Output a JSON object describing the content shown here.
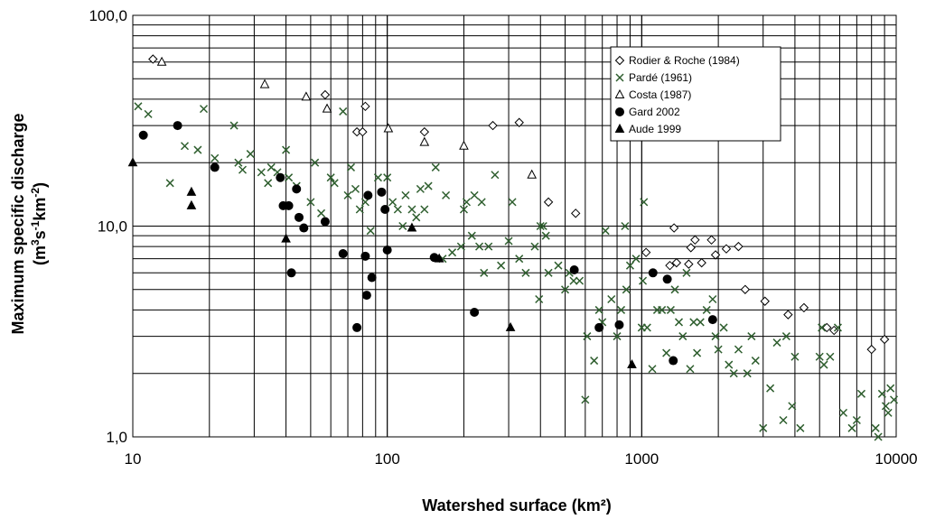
{
  "chart_data": {
    "type": "scatter",
    "xlabel": "Watershed surface (km²)",
    "ylabel_line1": "Maximum specific discharge",
    "ylabel_line2": {
      "pre": "(m",
      "sup1": "3",
      "mid1": "s",
      "sup2": "-1",
      "mid2": "km",
      "sup3": "-2",
      "post": ")"
    },
    "x_scale": "log",
    "y_scale": "log",
    "xlim": [
      10,
      10000
    ],
    "ylim": [
      1,
      100
    ],
    "x_ticks": [
      {
        "value": 10,
        "label": "10"
      },
      {
        "value": 100,
        "label": "100"
      },
      {
        "value": 1000,
        "label": "1000"
      },
      {
        "value": 10000,
        "label": "10000"
      }
    ],
    "y_ticks": [
      {
        "value": 1,
        "label": "1,0"
      },
      {
        "value": 10,
        "label": "10,0"
      },
      {
        "value": 100,
        "label": "100,0"
      }
    ],
    "grid": "major and minor",
    "legend_position": "top-right",
    "series": [
      {
        "name": "Rodier & Roche (1984)",
        "marker": "diamond-open",
        "color": "#000000",
        "points": [
          [
            12,
            62
          ],
          [
            57,
            42
          ],
          [
            76,
            28
          ],
          [
            80,
            28
          ],
          [
            82,
            37
          ],
          [
            140,
            28
          ],
          [
            260,
            30
          ],
          [
            330,
            31
          ],
          [
            430,
            13
          ],
          [
            550,
            11.5
          ],
          [
            1040,
            7.5
          ],
          [
            1290,
            6.5
          ],
          [
            1340,
            9.8
          ],
          [
            1370,
            6.7
          ],
          [
            1530,
            6.6
          ],
          [
            1560,
            7.9
          ],
          [
            1620,
            8.6
          ],
          [
            1720,
            6.7
          ],
          [
            1880,
            8.6
          ],
          [
            1950,
            7.3
          ],
          [
            2150,
            7.8
          ],
          [
            2400,
            8.0
          ],
          [
            2550,
            5.0
          ],
          [
            3050,
            4.4
          ],
          [
            3760,
            3.8
          ],
          [
            4340,
            4.1
          ],
          [
            5340,
            3.3
          ],
          [
            5700,
            3.2
          ],
          [
            8000,
            2.6
          ],
          [
            9000,
            2.9
          ]
        ]
      },
      {
        "name": "Pardé (1961)",
        "marker": "x",
        "color": "#2e5e2e",
        "points": [
          [
            10.5,
            37
          ],
          [
            11.5,
            34
          ],
          [
            14,
            16
          ],
          [
            16,
            24
          ],
          [
            18,
            23
          ],
          [
            19,
            36
          ],
          [
            21,
            21
          ],
          [
            25,
            30
          ],
          [
            26,
            20
          ],
          [
            27,
            18.5
          ],
          [
            29,
            22
          ],
          [
            32,
            18
          ],
          [
            34,
            16
          ],
          [
            35,
            19
          ],
          [
            37,
            18
          ],
          [
            40,
            23
          ],
          [
            41,
            17
          ],
          [
            44,
            15.5
          ],
          [
            50,
            13
          ],
          [
            52,
            20
          ],
          [
            55,
            11.5
          ],
          [
            60,
            17
          ],
          [
            62,
            16
          ],
          [
            67,
            35
          ],
          [
            70,
            14
          ],
          [
            72,
            19
          ],
          [
            75,
            15
          ],
          [
            78,
            12
          ],
          [
            82,
            13
          ],
          [
            86,
            9.5
          ],
          [
            92,
            17
          ],
          [
            100,
            17
          ],
          [
            105,
            13
          ],
          [
            110,
            12
          ],
          [
            115,
            10
          ],
          [
            118,
            14
          ],
          [
            125,
            12
          ],
          [
            130,
            11
          ],
          [
            135,
            15
          ],
          [
            140,
            12
          ],
          [
            145,
            15.5
          ],
          [
            155,
            19
          ],
          [
            165,
            7
          ],
          [
            170,
            14
          ],
          [
            180,
            7.5
          ],
          [
            195,
            8
          ],
          [
            200,
            12
          ],
          [
            205,
            13
          ],
          [
            215,
            9
          ],
          [
            220,
            14
          ],
          [
            230,
            8
          ],
          [
            235,
            13
          ],
          [
            240,
            6
          ],
          [
            250,
            8
          ],
          [
            265,
            17.5
          ],
          [
            280,
            6.5
          ],
          [
            300,
            8.5
          ],
          [
            310,
            13
          ],
          [
            330,
            7
          ],
          [
            350,
            6
          ],
          [
            380,
            8
          ],
          [
            395,
            4.5
          ],
          [
            400,
            10
          ],
          [
            410,
            10
          ],
          [
            420,
            9
          ],
          [
            430,
            6
          ],
          [
            470,
            6.5
          ],
          [
            500,
            5
          ],
          [
            520,
            6
          ],
          [
            540,
            5.5
          ],
          [
            570,
            5.5
          ],
          [
            600,
            1.5
          ],
          [
            610,
            3
          ],
          [
            650,
            2.3
          ],
          [
            680,
            4
          ],
          [
            700,
            3.5
          ],
          [
            720,
            9.5
          ],
          [
            760,
            4.5
          ],
          [
            800,
            3
          ],
          [
            830,
            4
          ],
          [
            860,
            10
          ],
          [
            870,
            5
          ],
          [
            900,
            6.5
          ],
          [
            950,
            7
          ],
          [
            1000,
            3.3
          ],
          [
            1010,
            5.5
          ],
          [
            1020,
            13
          ],
          [
            1050,
            3.3
          ],
          [
            1100,
            2.1
          ],
          [
            1150,
            4
          ],
          [
            1200,
            4
          ],
          [
            1250,
            2.5
          ],
          [
            1300,
            4
          ],
          [
            1350,
            5
          ],
          [
            1400,
            3.5
          ],
          [
            1450,
            3
          ],
          [
            1500,
            6
          ],
          [
            1550,
            2.1
          ],
          [
            1600,
            3.5
          ],
          [
            1650,
            2.5
          ],
          [
            1700,
            3.5
          ],
          [
            1800,
            4
          ],
          [
            1900,
            4.5
          ],
          [
            1950,
            3
          ],
          [
            2000,
            2.6
          ],
          [
            2100,
            3.3
          ],
          [
            2200,
            2.2
          ],
          [
            2300,
            2
          ],
          [
            2400,
            2.6
          ],
          [
            2600,
            2
          ],
          [
            2700,
            3
          ],
          [
            2800,
            2.3
          ],
          [
            3000,
            1.1
          ],
          [
            3200,
            1.7
          ],
          [
            3400,
            2.8
          ],
          [
            3600,
            1.2
          ],
          [
            3700,
            3
          ],
          [
            3900,
            1.4
          ],
          [
            4000,
            2.4
          ],
          [
            4200,
            1.1
          ],
          [
            5000,
            2.4
          ],
          [
            5100,
            3.3
          ],
          [
            5200,
            2.2
          ],
          [
            5500,
            2.4
          ],
          [
            5900,
            3.3
          ],
          [
            6200,
            1.3
          ],
          [
            6700,
            1.1
          ],
          [
            7000,
            1.2
          ],
          [
            7300,
            1.6
          ],
          [
            8300,
            1.1
          ],
          [
            8500,
            1.0
          ],
          [
            8800,
            1.6
          ],
          [
            9100,
            1.4
          ],
          [
            9300,
            1.3
          ],
          [
            9500,
            1.7
          ],
          [
            9800,
            1.5
          ]
        ]
      },
      {
        "name": "Costa (1987)",
        "marker": "triangle-open",
        "color": "#000000",
        "points": [
          [
            13,
            60
          ],
          [
            33,
            47
          ],
          [
            48,
            41
          ],
          [
            58,
            36
          ],
          [
            101,
            29
          ],
          [
            140,
            25
          ],
          [
            200,
            24
          ],
          [
            370,
            17.5
          ]
        ]
      },
      {
        "name": "Gard 2002",
        "marker": "circle-filled",
        "color": "#000000",
        "points": [
          [
            11,
            27
          ],
          [
            15,
            30
          ],
          [
            21,
            19
          ],
          [
            38,
            17
          ],
          [
            39,
            12.5
          ],
          [
            41,
            12.5
          ],
          [
            42,
            6
          ],
          [
            44,
            15
          ],
          [
            45,
            11
          ],
          [
            47,
            9.8
          ],
          [
            57,
            10.5
          ],
          [
            67,
            7.4
          ],
          [
            76,
            3.3
          ],
          [
            82,
            7.2
          ],
          [
            83,
            4.7
          ],
          [
            84,
            14
          ],
          [
            87,
            5.7
          ],
          [
            95,
            14.5
          ],
          [
            98,
            12
          ],
          [
            100,
            7.7
          ],
          [
            153,
            7.1
          ],
          [
            220,
            3.9
          ],
          [
            543,
            6.2
          ],
          [
            680,
            3.3
          ],
          [
            816,
            3.4
          ],
          [
            1107,
            6
          ],
          [
            1260,
            5.6
          ],
          [
            1330,
            2.3
          ],
          [
            1900,
            3.6
          ]
        ]
      },
      {
        "name": "Aude 1999",
        "marker": "triangle-filled",
        "color": "#000000",
        "points": [
          [
            10,
            20
          ],
          [
            17,
            12.5
          ],
          [
            17,
            14.5
          ],
          [
            40,
            8.7
          ],
          [
            125,
            9.8
          ],
          [
            160,
            7
          ],
          [
            305,
            3.3
          ],
          [
            915,
            2.2
          ]
        ]
      }
    ]
  }
}
